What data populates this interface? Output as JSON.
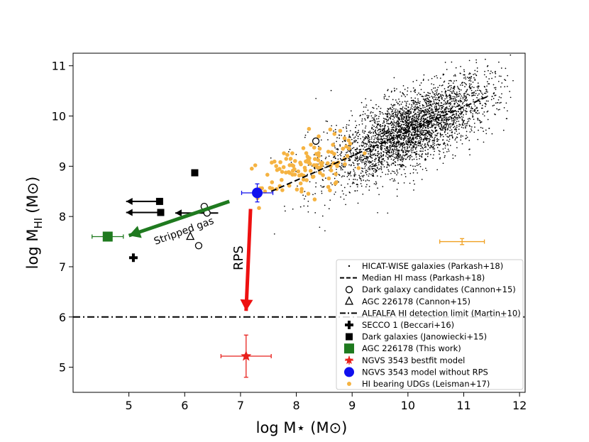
{
  "chart_data": {
    "type": "scatter",
    "xlabel": "log M⋆ (M⊙)",
    "ylabel_main": "log M",
    "ylabel_sub": "HI",
    "ylabel_unit": "(M⊙)",
    "xlim": [
      4.0,
      12.1
    ],
    "ylim": [
      4.5,
      11.25
    ],
    "xticks": [
      5,
      6,
      7,
      8,
      9,
      10,
      11,
      12
    ],
    "yticks": [
      5,
      6,
      7,
      8,
      9,
      10,
      11
    ],
    "annotations": {
      "stripped_gas": "Stripped gas",
      "rps": "RPS"
    },
    "series": [
      {
        "name": "HICAT-WISE galaxies (Parkash+18)",
        "kind": "cloud",
        "color": "#000000",
        "note": "dense scatter of ~4000 galaxies roughly following the median relation, spread ~0.4 dex"
      },
      {
        "name": "Median HI mass (Parkash+18)",
        "kind": "line",
        "style": "dashed",
        "color": "#000000",
        "x": [
          7.55,
          11.45
        ],
        "y": [
          8.5,
          10.4
        ]
      },
      {
        "name": "Dark galaxy candidates (Cannon+15)",
        "kind": "marker",
        "marker": "open-circle",
        "color": "#000000",
        "points": [
          [
            6.35,
            8.2
          ],
          [
            6.4,
            8.07
          ],
          [
            6.25,
            7.42
          ],
          [
            8.35,
            9.5
          ]
        ]
      },
      {
        "name": "AGC 226178 (Cannon+15)",
        "kind": "marker",
        "marker": "open-triangle",
        "color": "#000000",
        "points": [
          [
            6.1,
            7.6
          ]
        ]
      },
      {
        "name": "ALFALFA HI detection limit (Martin+10)",
        "kind": "hline",
        "style": "dashdot",
        "color": "#000000",
        "y": 6.0
      },
      {
        "name": "SECCO 1 (Beccari+16)",
        "kind": "marker",
        "marker": "plus",
        "color": "#000000",
        "points": [
          [
            5.08,
            7.18
          ]
        ]
      },
      {
        "name": "Dark galaxies (Janowiecki+15)",
        "kind": "marker",
        "marker": "square",
        "color": "#000000",
        "points": [
          [
            5.55,
            8.3
          ],
          [
            5.57,
            8.08
          ],
          [
            6.18,
            8.87
          ]
        ],
        "upper_limits": [
          [
            5.55,
            8.3,
            4.95
          ],
          [
            5.57,
            8.08,
            4.95
          ],
          [
            6.6,
            8.07,
            5.83
          ]
        ]
      },
      {
        "name": "AGC 226178 (This work)",
        "kind": "marker",
        "marker": "square",
        "color": "#1f7a1f",
        "points": [
          [
            4.62,
            7.6
          ]
        ],
        "xerr": [
          [
            0.28,
            0.28
          ]
        ]
      },
      {
        "name": "NGVS 3543 bestfit model",
        "kind": "marker",
        "marker": "star",
        "color": "#e8201c",
        "points": [
          [
            7.1,
            5.22
          ]
        ],
        "xerr": [
          [
            0.45,
            0.45
          ]
        ],
        "yerr": [
          [
            0.42,
            0.42
          ]
        ]
      },
      {
        "name": "NGVS 3543 model without RPS",
        "kind": "marker",
        "marker": "circle",
        "color": "#1010ee",
        "points": [
          [
            7.3,
            8.47
          ]
        ],
        "xerr": [
          [
            0.28,
            0.28
          ]
        ],
        "yerr": [
          [
            0.18,
            0.18
          ]
        ]
      },
      {
        "name": "HI bearing UDGs (Leisman+17)",
        "kind": "marker",
        "marker": "small-circle",
        "color": "#f5b342",
        "note": "~120 points clustered around log M⋆ 7.2–9.2, log M_HI 8.2–9.6"
      },
      {
        "name": "typical error",
        "kind": "errorbar",
        "color": "#f0a020",
        "legend": false,
        "points": [
          [
            10.97,
            7.5
          ]
        ],
        "xerr": [
          [
            0.4,
            0.4
          ]
        ]
      }
    ],
    "arrows": [
      {
        "name": "stripped-gas-arrow",
        "color": "#1f7a1f",
        "from": [
          6.8,
          8.3
        ],
        "to": [
          5.0,
          7.62
        ]
      },
      {
        "name": "rps-arrow",
        "color": "#ee1010",
        "from": [
          7.18,
          8.15
        ],
        "to": [
          7.1,
          6.12
        ]
      }
    ],
    "legend": {
      "position": "bottom-right",
      "entries": [
        "HICAT-WISE galaxies (Parkash+18)",
        "Median HI mass (Parkash+18)",
        "Dark galaxy candidates (Cannon+15)",
        "AGC 226178 (Cannon+15)",
        "ALFALFA HI detection limit (Martin+10)",
        "SECCO 1 (Beccari+16)",
        "Dark galaxies (Janowiecki+15)",
        "AGC 226178 (This work)",
        "NGVS 3543 bestfit model",
        "NGVS 3543 model without RPS",
        "HI bearing UDGs (Leisman+17)"
      ]
    }
  }
}
